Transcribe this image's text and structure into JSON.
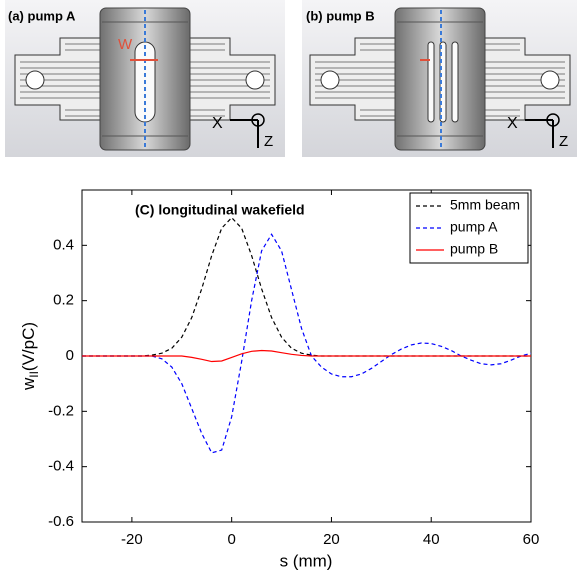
{
  "panels": [
    {
      "label": "(a) pump A",
      "width_label": "W",
      "axis_x": "X",
      "axis_z": "Z"
    },
    {
      "label": "(b) pump B",
      "axis_x": "X",
      "axis_z": "Z"
    }
  ],
  "chart_data": {
    "type": "line",
    "title": "(C) longitudinal wakefield",
    "xlabel": "s (mm)",
    "ylabel": "w",
    "ylabel_sub": "II",
    "ylabel_unit": "(V/pC)",
    "xlim": [
      -30,
      60
    ],
    "xticks": [
      -20,
      0,
      20,
      40,
      60
    ],
    "ylim": [
      -0.6,
      0.6
    ],
    "yticks": [
      -0.6,
      -0.4,
      -0.2,
      0,
      0.2,
      0.4
    ],
    "legend": "upper right",
    "x": [
      -30,
      -28,
      -26,
      -24,
      -22,
      -20,
      -18,
      -16,
      -14,
      -12,
      -10,
      -8,
      -6,
      -4,
      -2,
      0,
      2,
      4,
      6,
      8,
      10,
      12,
      14,
      16,
      18,
      20,
      22,
      24,
      26,
      28,
      30,
      32,
      34,
      36,
      38,
      40,
      42,
      44,
      46,
      48,
      50,
      52,
      54,
      56,
      58,
      60
    ],
    "series": [
      {
        "name": "5mm beam",
        "color": "#000000",
        "linestyle": "dashed",
        "values": [
          0,
          0,
          0,
          0,
          0,
          0,
          0,
          0.003,
          0.01,
          0.028,
          0.068,
          0.139,
          0.243,
          0.363,
          0.462,
          0.5,
          0.462,
          0.363,
          0.243,
          0.139,
          0.068,
          0.028,
          0.01,
          0.003,
          0,
          0,
          0,
          0,
          0,
          0,
          0,
          0,
          0,
          0,
          0,
          0,
          0,
          0,
          0,
          0,
          0,
          0,
          0,
          0,
          0,
          0
        ]
      },
      {
        "name": "pump A",
        "color": "#0000ff",
        "linestyle": "dashed",
        "values": [
          0,
          0,
          0,
          0,
          0,
          0,
          0,
          0,
          -0.01,
          -0.04,
          -0.1,
          -0.19,
          -0.28,
          -0.35,
          -0.34,
          -0.22,
          -0.02,
          0.2,
          0.38,
          0.44,
          0.38,
          0.24,
          0.1,
          0,
          -0.04,
          -0.065,
          -0.075,
          -0.075,
          -0.065,
          -0.045,
          -0.02,
          0.005,
          0.025,
          0.04,
          0.047,
          0.045,
          0.035,
          0.02,
          0,
          -0.015,
          -0.028,
          -0.032,
          -0.028,
          -0.015,
          0,
          0.01
        ]
      },
      {
        "name": "pump B",
        "color": "#ff0000",
        "linestyle": "solid",
        "values": [
          0,
          0,
          0,
          0,
          0,
          0,
          0,
          0,
          0,
          0,
          0,
          -0.005,
          -0.012,
          -0.02,
          -0.018,
          -0.005,
          0.008,
          0.017,
          0.02,
          0.018,
          0.012,
          0.006,
          0.002,
          0,
          0,
          0,
          0,
          0,
          0,
          0,
          0,
          0,
          0,
          0,
          0,
          0,
          0,
          0,
          0,
          0,
          0,
          0,
          0,
          0,
          0,
          0
        ]
      }
    ]
  }
}
